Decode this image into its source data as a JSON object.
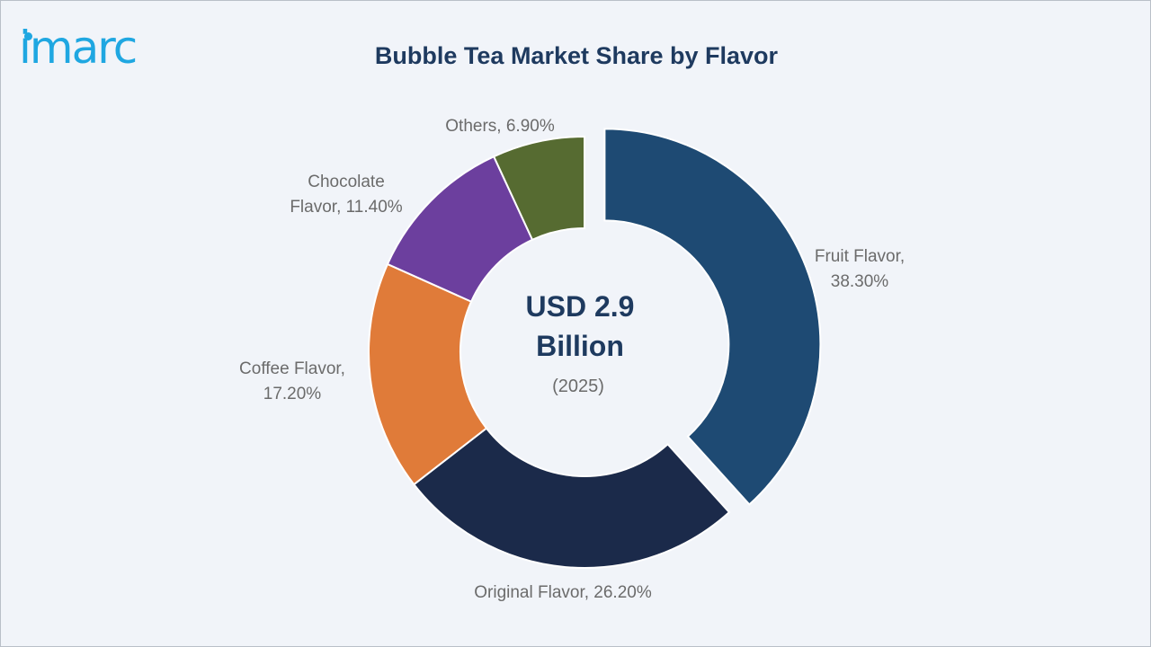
{
  "brand": {
    "logo_text": "imarc",
    "logo_color": "#1fa7e1"
  },
  "chart_data": {
    "type": "pie",
    "title": "Bubble Tea Market Share by Flavor",
    "center_label": {
      "line1": "USD 2.9",
      "line2": "Billion",
      "line3": "(2025)"
    },
    "unit": "%",
    "slices": [
      {
        "name": "Fruit Flavor",
        "value": 38.3,
        "color": "#1e4a73",
        "exploded": true,
        "label_lines": [
          "Fruit Flavor,",
          "38.30%"
        ]
      },
      {
        "name": "Original Flavor",
        "value": 26.2,
        "color": "#1b2a4a",
        "exploded": false,
        "label_lines": [
          "Original Flavor, 26.20%"
        ]
      },
      {
        "name": "Coffee Flavor",
        "value": 17.2,
        "color": "#e07b39",
        "exploded": false,
        "label_lines": [
          "Coffee Flavor,",
          "17.20%"
        ]
      },
      {
        "name": "Chocolate Flavor",
        "value": 11.4,
        "color": "#6c3f9e",
        "exploded": false,
        "label_lines": [
          "Chocolate",
          "Flavor, 11.40%"
        ]
      },
      {
        "name": "Others",
        "value": 6.9,
        "color": "#566b31",
        "exploded": false,
        "label_lines": [
          "Others, 6.90%"
        ]
      }
    ],
    "colors": {
      "title": "#1e3a5f",
      "center_text": "#1e3a5f",
      "label_text": "#6b6b6b"
    }
  }
}
